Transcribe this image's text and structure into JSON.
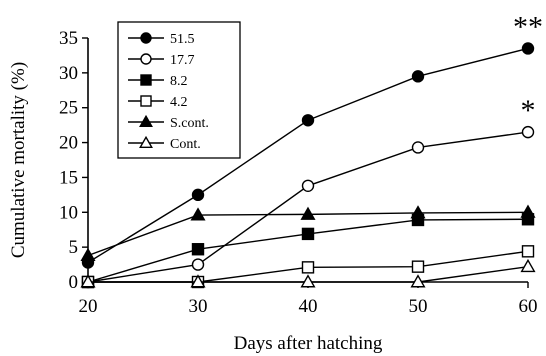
{
  "chart_data": {
    "type": "line",
    "title": "",
    "xlabel": "Days after hatching",
    "ylabel": "Cumulative mortality (%)",
    "x": [
      20,
      30,
      40,
      50,
      60
    ],
    "xticks": [
      "20",
      "30",
      "40",
      "50",
      "60"
    ],
    "xlim": [
      20,
      60
    ],
    "ylim": [
      0,
      35
    ],
    "yticks": [
      "0",
      "5",
      "10",
      "15",
      "20",
      "25",
      "30",
      "35"
    ],
    "grid": false,
    "legend_position": "top-left",
    "series": [
      {
        "name": "51.5",
        "marker": "circle",
        "filled": true,
        "values": [
          2.8,
          12.5,
          23.2,
          29.5,
          33.5
        ]
      },
      {
        "name": "17.7",
        "marker": "circle",
        "filled": false,
        "values": [
          0.0,
          2.5,
          13.8,
          19.3,
          21.5
        ]
      },
      {
        "name": "8.2",
        "marker": "square",
        "filled": true,
        "values": [
          0.0,
          4.7,
          6.9,
          8.9,
          9.0
        ]
      },
      {
        "name": "4.2",
        "marker": "square",
        "filled": false,
        "values": [
          0.0,
          0.0,
          2.1,
          2.2,
          4.4
        ]
      },
      {
        "name": "S.cont.",
        "marker": "triangle",
        "filled": true,
        "values": [
          3.8,
          9.6,
          9.7,
          9.9,
          10.0
        ]
      },
      {
        "name": "Cont.",
        "marker": "triangle",
        "filled": false,
        "values": [
          0.0,
          0.0,
          0.0,
          0.0,
          2.2
        ]
      }
    ],
    "annotations": [
      {
        "text": "**",
        "x": 60,
        "y": 33.5
      },
      {
        "text": "*",
        "x": 60,
        "y": 21.5
      }
    ]
  }
}
